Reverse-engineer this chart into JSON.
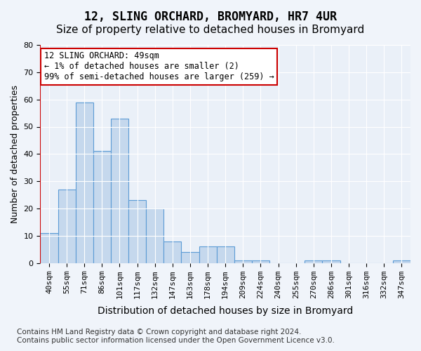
{
  "title": "12, SLING ORCHARD, BROMYARD, HR7 4UR",
  "subtitle": "Size of property relative to detached houses in Bromyard",
  "xlabel": "Distribution of detached houses by size in Bromyard",
  "ylabel": "Number of detached properties",
  "categories": [
    "40sqm",
    "55sqm",
    "71sqm",
    "86sqm",
    "101sqm",
    "117sqm",
    "132sqm",
    "147sqm",
    "163sqm",
    "178sqm",
    "194sqm",
    "209sqm",
    "224sqm",
    "240sqm",
    "255sqm",
    "270sqm",
    "286sqm",
    "301sqm",
    "316sqm",
    "332sqm",
    "347sqm"
  ],
  "values": [
    11,
    27,
    59,
    41,
    53,
    23,
    20,
    8,
    4,
    6,
    6,
    1,
    1,
    0,
    0,
    1,
    1,
    0,
    0,
    0,
    1
  ],
  "bar_color": "#c5d8ed",
  "bar_edge_color": "#5b9bd5",
  "highlight_index": 0,
  "highlight_line_color": "#cc0000",
  "annotation_text": "12 SLING ORCHARD: 49sqm\n← 1% of detached houses are smaller (2)\n99% of semi-detached houses are larger (259) →",
  "annotation_box_color": "#ffffff",
  "annotation_box_edge_color": "#cc0000",
  "ylim": [
    0,
    80
  ],
  "yticks": [
    0,
    10,
    20,
    30,
    40,
    50,
    60,
    70,
    80
  ],
  "background_color": "#f0f4fa",
  "plot_background_color": "#eaf0f8",
  "grid_color": "#ffffff",
  "footer_text": "Contains HM Land Registry data © Crown copyright and database right 2024.\nContains public sector information licensed under the Open Government Licence v3.0.",
  "title_fontsize": 12,
  "subtitle_fontsize": 11,
  "xlabel_fontsize": 10,
  "ylabel_fontsize": 9,
  "tick_fontsize": 8,
  "annotation_fontsize": 8.5,
  "footer_fontsize": 7.5
}
